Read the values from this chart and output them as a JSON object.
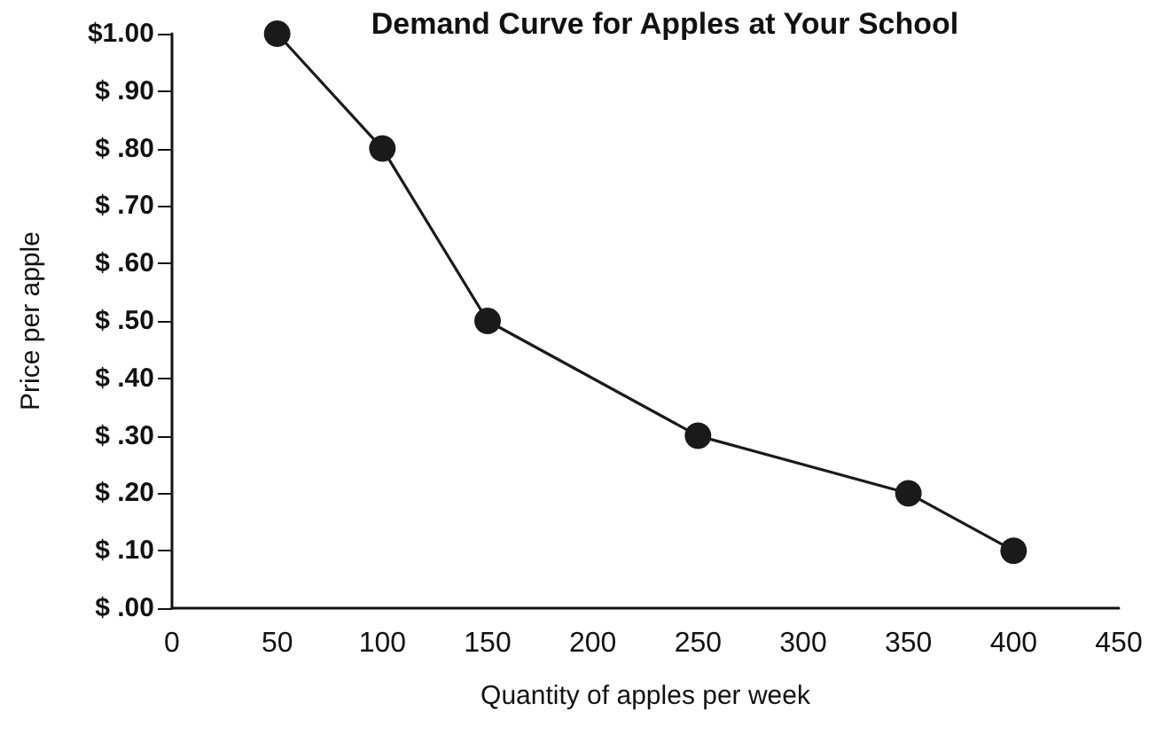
{
  "chart_data": {
    "type": "line",
    "title": "Demand Curve for Apples at Your School",
    "xlabel": "Quantity of apples per week",
    "ylabel": "Price per apple",
    "x": [
      50,
      100,
      150,
      250,
      350,
      400
    ],
    "series": [
      {
        "color": "#1a1a1a",
        "values": [
          1.0,
          0.8,
          0.5,
          0.3,
          0.2,
          0.1
        ]
      }
    ],
    "xlim": [
      0,
      450
    ],
    "xticks": [
      0,
      50,
      100,
      150,
      200,
      250,
      300,
      350,
      400,
      450
    ],
    "ylim": [
      0,
      1
    ],
    "yticks": [
      {
        "value": 0,
        "label": "$ .00"
      },
      {
        "value": 0.1,
        "label": "$ .10"
      },
      {
        "value": 0.2,
        "label": "$ .20"
      },
      {
        "value": 0.3,
        "label": "$ .30"
      },
      {
        "value": 0.4,
        "label": "$ .40"
      },
      {
        "value": 0.5,
        "label": "$ .50"
      },
      {
        "value": 0.6,
        "label": "$ .60"
      },
      {
        "value": 0.7,
        "label": "$ .70"
      },
      {
        "value": 0.8,
        "label": "$ .80"
      },
      {
        "value": 0.9,
        "label": "$ .90"
      },
      {
        "value": 1,
        "label": "$1.00"
      }
    ],
    "grid": false,
    "marker": "circle",
    "line_style": "solid"
  }
}
